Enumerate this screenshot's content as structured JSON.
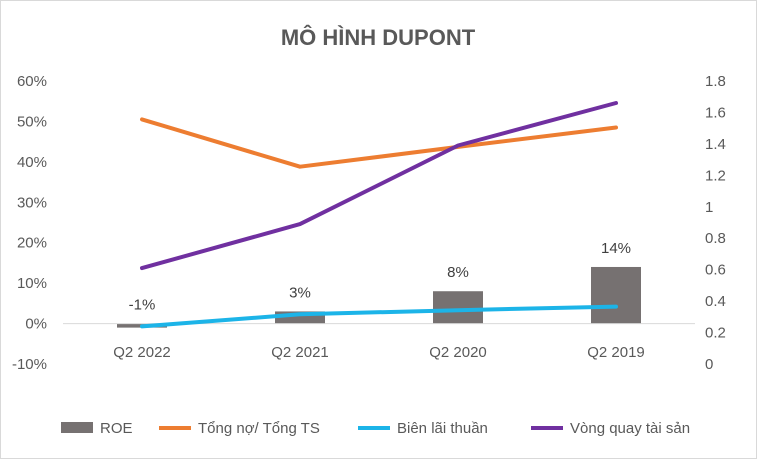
{
  "chart_data": {
    "type": "bar-line-combo",
    "title": "MÔ HÌNH DUPONT",
    "categories": [
      "Q2 2022",
      "Q2 2021",
      "Q2 2020",
      "Q2 2019"
    ],
    "y_left": {
      "min": -0.1,
      "max": 0.6,
      "step": 0.1,
      "tick_labels": [
        "-10%",
        "0%",
        "10%",
        "20%",
        "30%",
        "40%",
        "50%",
        "60%"
      ]
    },
    "y_right": {
      "min": 0,
      "max": 1.8,
      "step": 0.2,
      "tick_labels": [
        "0",
        "0.2",
        "0.4",
        "0.6",
        "0.8",
        "1",
        "1.2",
        "1.4",
        "1.6",
        "1.8"
      ]
    },
    "grid": false,
    "legend_position": "bottom",
    "series": [
      {
        "name": "ROE",
        "kind": "bar",
        "axis": "left",
        "color": "#767171",
        "values": [
          -0.01,
          0.03,
          0.08,
          0.14
        ],
        "data_labels": [
          "-1%",
          "3%",
          "8%",
          "14%"
        ]
      },
      {
        "name": "Tổng nợ/ Tổng TS",
        "kind": "line",
        "axis": "left",
        "color": "#ED7D31",
        "values": [
          0.505,
          0.388,
          0.437,
          0.485
        ]
      },
      {
        "name": "Biên lãi thuần",
        "kind": "line",
        "axis": "left",
        "color": "#1CB4E8",
        "values": [
          -0.007,
          0.023,
          0.033,
          0.042
        ]
      },
      {
        "name": "Vòng quay tài sản",
        "kind": "line",
        "axis": "right",
        "color": "#7030A0",
        "values": [
          0.61,
          0.89,
          1.39,
          1.66
        ]
      }
    ]
  }
}
